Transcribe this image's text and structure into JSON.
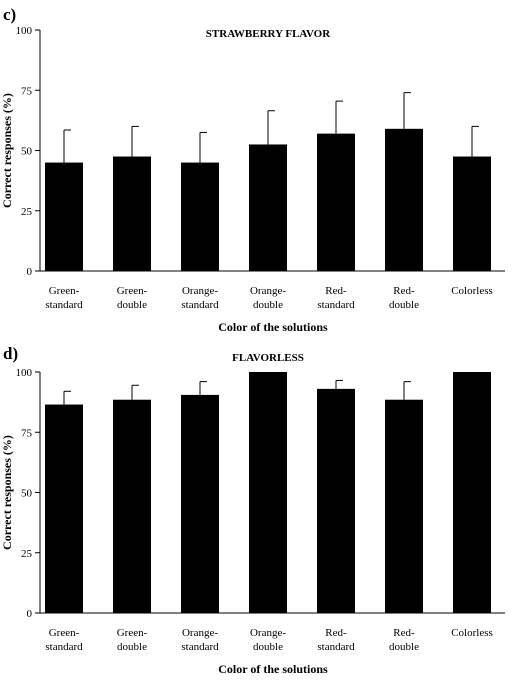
{
  "chart_data": [
    {
      "type": "bar",
      "panel_label": "c)",
      "title": "STRAWBERRY FLAVOR",
      "xlabel": "Color of the solutions",
      "ylabel": "Correct responses (%)",
      "ylim": [
        0,
        100
      ],
      "yticks": [
        "0",
        "25",
        "50",
        "75",
        "100"
      ],
      "grid": false,
      "categories": [
        "Green-\nstandard",
        "Green-\ndouble",
        "Orange-\nstandard",
        "Orange-\ndouble",
        "Red-\nstandard",
        "Red-\ndouble",
        "Colorless"
      ],
      "values": [
        45,
        47.5,
        45,
        52.5,
        57,
        59,
        47.5
      ],
      "error_upper": [
        58.5,
        60,
        57.5,
        66.5,
        70.5,
        74,
        60
      ]
    },
    {
      "type": "bar",
      "panel_label": "d)",
      "title": "FLAVORLESS",
      "xlabel": "Color of the solutions",
      "ylabel": "Correct responses (%)",
      "ylim": [
        0,
        100
      ],
      "yticks": [
        "0",
        "25",
        "50",
        "75",
        "100"
      ],
      "grid": false,
      "categories": [
        "Green-\nstandard",
        "Green-\ndouble",
        "Orange-\nstandard",
        "Orange-\ndouble",
        "Red-\nstandard",
        "Red-\ndouble",
        "Colorless"
      ],
      "values": [
        86.5,
        88.5,
        90.5,
        100,
        93,
        88.5,
        100
      ],
      "error_upper": [
        92,
        94.5,
        96,
        100,
        96.5,
        96,
        100
      ]
    }
  ]
}
